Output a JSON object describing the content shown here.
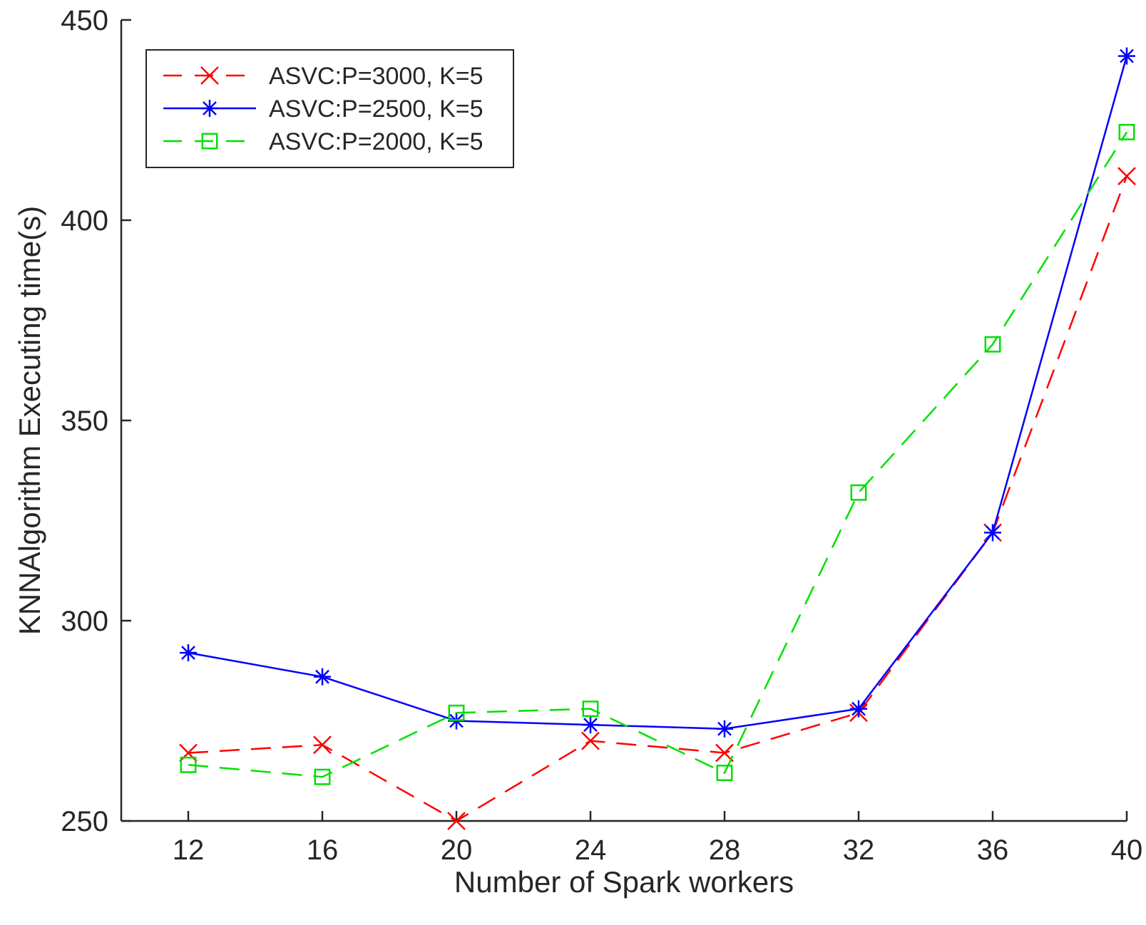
{
  "chart_data": {
    "type": "line",
    "title": "",
    "xlabel": "Number of Spark workers",
    "ylabel": "KNNAlgorithm Executing time(s)",
    "x": [
      12,
      16,
      20,
      24,
      28,
      32,
      36,
      40
    ],
    "xlim": [
      10,
      40
    ],
    "ylim": [
      250,
      450
    ],
    "xticks": [
      12,
      16,
      20,
      24,
      28,
      32,
      36,
      40
    ],
    "yticks": [
      250,
      300,
      350,
      400,
      450
    ],
    "grid": false,
    "legend_position": "top-left",
    "series": [
      {
        "name": "ASVC:P=3000, K=5",
        "color": "#ff0000",
        "line_style": "dashed",
        "marker": "x",
        "values": [
          267,
          269,
          250,
          270,
          267,
          277,
          322,
          411
        ]
      },
      {
        "name": "ASVC:P=2500, K=5",
        "color": "#0000ff",
        "line_style": "solid",
        "marker": "asterisk",
        "values": [
          292,
          286,
          275,
          274,
          273,
          278,
          322,
          441
        ]
      },
      {
        "name": "ASVC:P=2000, K=5",
        "color": "#00e000",
        "line_style": "dashed",
        "marker": "square",
        "values": [
          264,
          261,
          277,
          278,
          262,
          332,
          369,
          422
        ]
      }
    ]
  }
}
